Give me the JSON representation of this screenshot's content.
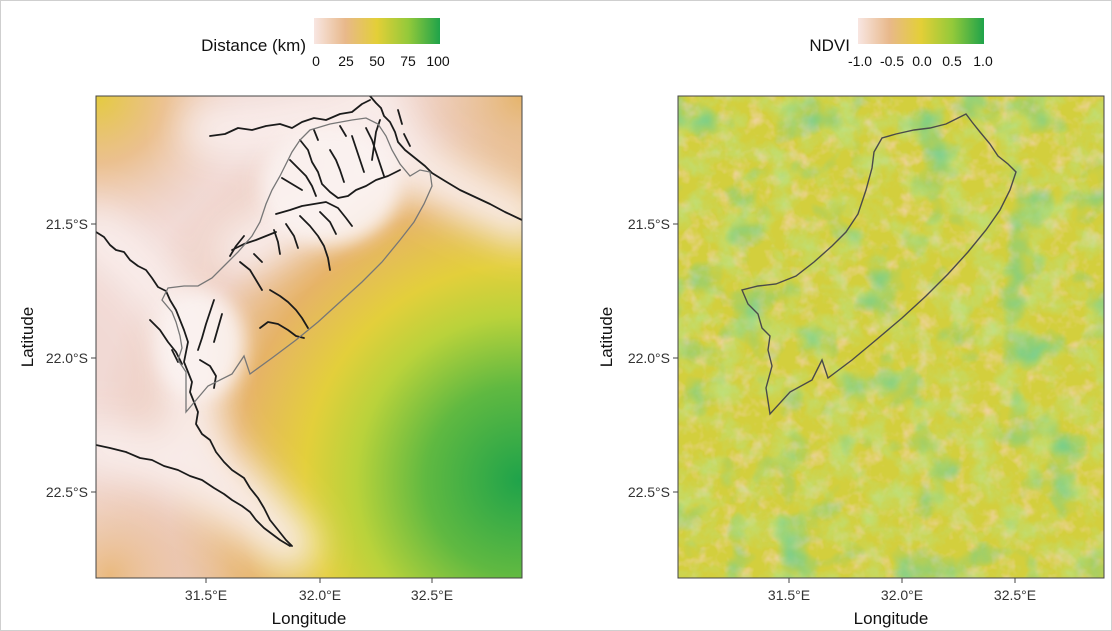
{
  "chart_data": [
    {
      "type": "heatmap",
      "legend": {
        "title": "Distance (km)",
        "ticks": [
          "0",
          "25",
          "50",
          "75",
          "100"
        ],
        "range": [
          0,
          100
        ],
        "placement": "top",
        "colors": [
          "#f3d5d0",
          "#e8b27e",
          "#e2cf3a",
          "#93c93a",
          "#22a64a"
        ]
      },
      "xlabel": "Longitude",
      "ylabel": "Latitude",
      "x_ticks": [
        "31.5°E",
        "32.0°E",
        "32.5°E"
      ],
      "y_ticks": [
        "21.5°S",
        "22.0°S",
        "22.5°S"
      ],
      "grid": false,
      "layers": [
        "distance raster",
        "rivers",
        "park boundary"
      ]
    },
    {
      "type": "heatmap",
      "legend": {
        "title": "NDVI",
        "ticks": [
          "-1.0",
          "-0.5",
          "0.0",
          "0.5",
          "1.0"
        ],
        "range": [
          -1.0,
          1.0
        ],
        "placement": "top",
        "colors": [
          "#f3d5d0",
          "#e8b27e",
          "#e2cf3a",
          "#93c93a",
          "#22a64a"
        ]
      },
      "xlabel": "Longitude",
      "ylabel": "Latitude",
      "x_ticks": [
        "31.5°E",
        "32.0°E",
        "32.5°E"
      ],
      "y_ticks": [
        "21.5°S",
        "22.0°S",
        "22.5°S"
      ],
      "grid": false,
      "layers": [
        "NDVI raster",
        "park boundary"
      ]
    }
  ]
}
